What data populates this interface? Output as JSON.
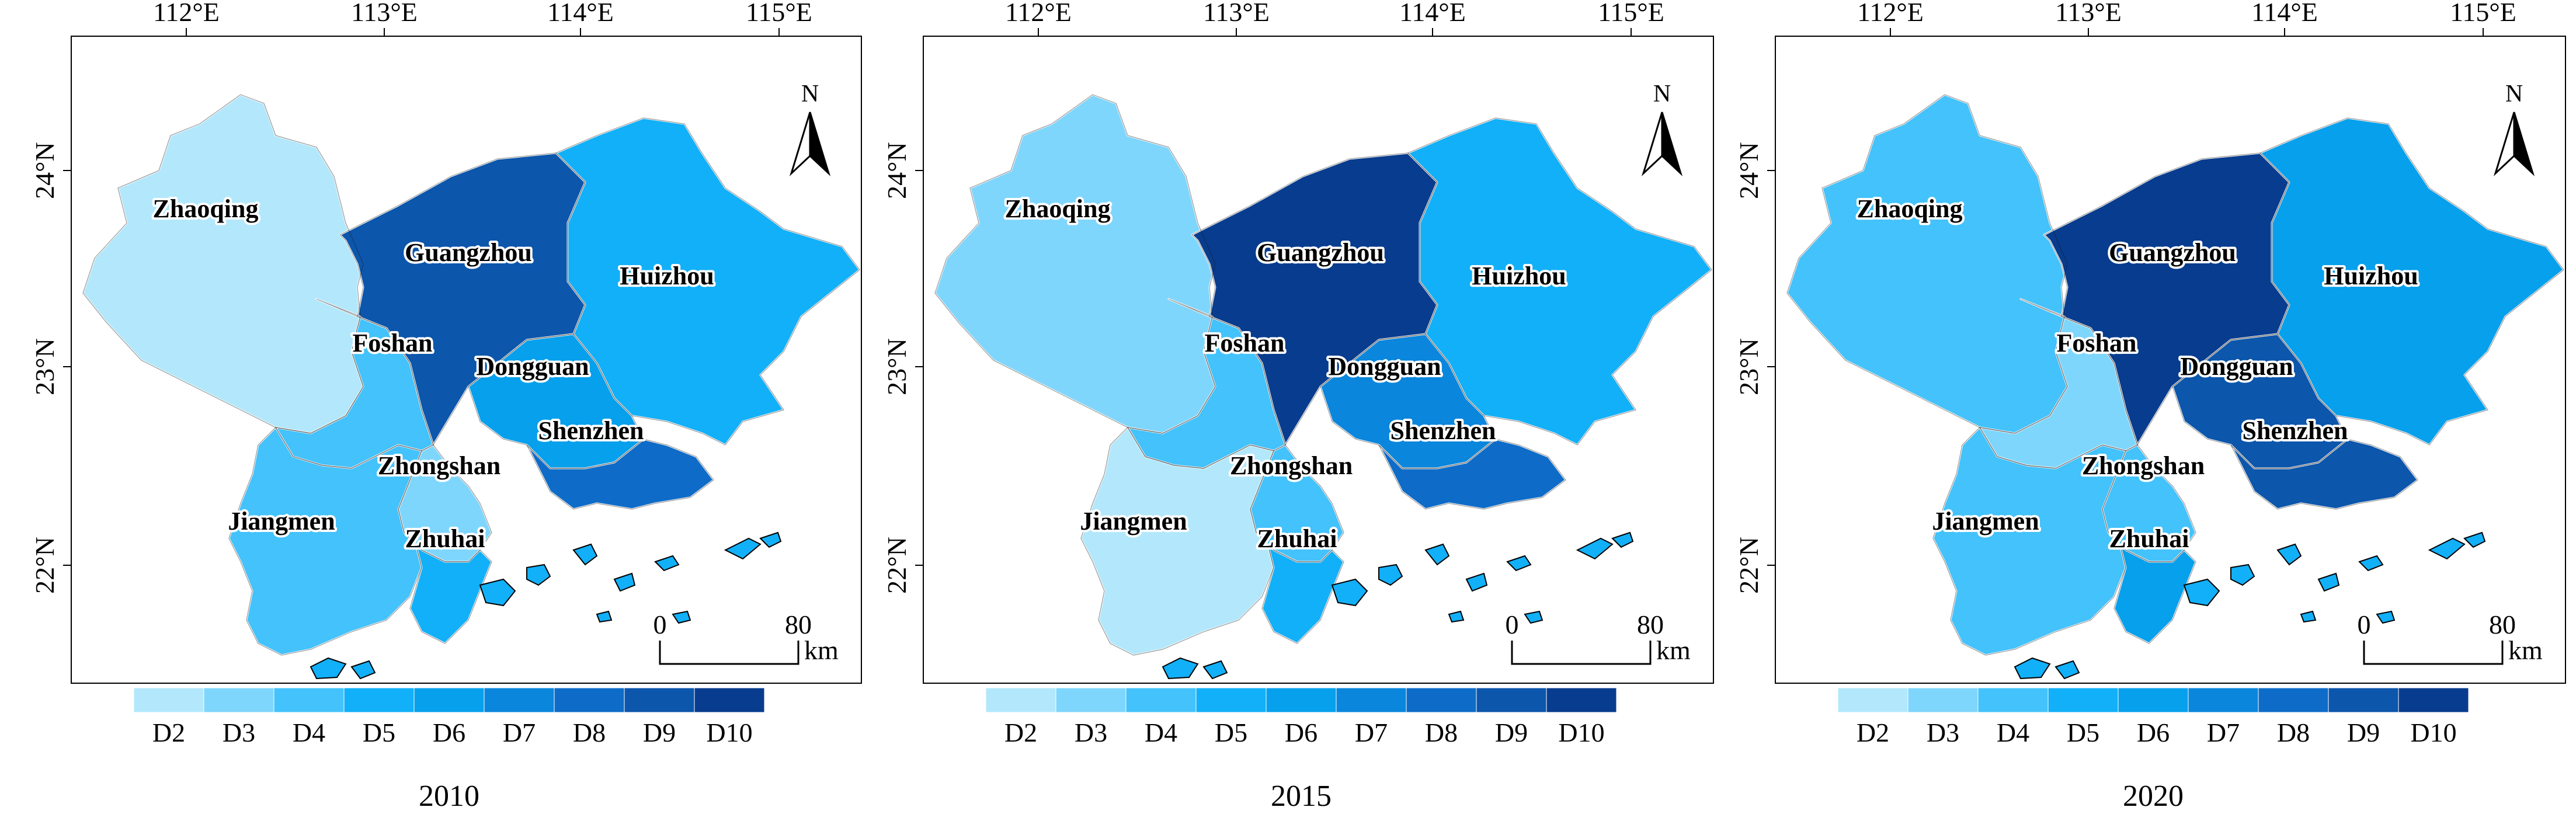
{
  "legend": {
    "classes": [
      "D2",
      "D3",
      "D4",
      "D5",
      "D6",
      "D7",
      "D8",
      "D9",
      "D10"
    ],
    "colors": [
      "#b3e8fc",
      "#7fd6fd",
      "#43c2fb",
      "#12b0f8",
      "#06a0ec",
      "#0a86dc",
      "#0e6cc8",
      "#0c56ac",
      "#083c8e"
    ]
  },
  "axes": {
    "lon_labels": [
      "112°E",
      "113°E",
      "114°E",
      "115°E"
    ],
    "lat_labels": [
      "24°N",
      "23°N",
      "22°N"
    ]
  },
  "north_label": "N",
  "scale_bar": {
    "start": "0",
    "end": "80",
    "unit": "km"
  },
  "panels": [
    {
      "year": "2010",
      "cities": [
        {
          "name": "Zhaoqing",
          "class": "D2"
        },
        {
          "name": "Guangzhou",
          "class": "D9"
        },
        {
          "name": "Huizhou",
          "class": "D5"
        },
        {
          "name": "Foshan",
          "class": "D4"
        },
        {
          "name": "Dongguan",
          "class": "D6"
        },
        {
          "name": "Shenzhen",
          "class": "D8"
        },
        {
          "name": "Zhongshan",
          "class": "D3"
        },
        {
          "name": "Jiangmen",
          "class": "D4"
        },
        {
          "name": "Zhuhai",
          "class": "D5"
        }
      ]
    },
    {
      "year": "2015",
      "cities": [
        {
          "name": "Zhaoqing",
          "class": "D3"
        },
        {
          "name": "Guangzhou",
          "class": "D10"
        },
        {
          "name": "Huizhou",
          "class": "D5"
        },
        {
          "name": "Foshan",
          "class": "D4"
        },
        {
          "name": "Dongguan",
          "class": "D7"
        },
        {
          "name": "Shenzhen",
          "class": "D8"
        },
        {
          "name": "Zhongshan",
          "class": "D4"
        },
        {
          "name": "Jiangmen",
          "class": "D2"
        },
        {
          "name": "Zhuhai",
          "class": "D5"
        }
      ]
    },
    {
      "year": "2020",
      "cities": [
        {
          "name": "Zhaoqing",
          "class": "D4"
        },
        {
          "name": "Guangzhou",
          "class": "D10"
        },
        {
          "name": "Huizhou",
          "class": "D6"
        },
        {
          "name": "Foshan",
          "class": "D3"
        },
        {
          "name": "Dongguan",
          "class": "D9"
        },
        {
          "name": "Shenzhen",
          "class": "D9"
        },
        {
          "name": "Zhongshan",
          "class": "D4"
        },
        {
          "name": "Jiangmen",
          "class": "D4"
        },
        {
          "name": "Zhuhai",
          "class": "D6"
        }
      ]
    }
  ]
}
